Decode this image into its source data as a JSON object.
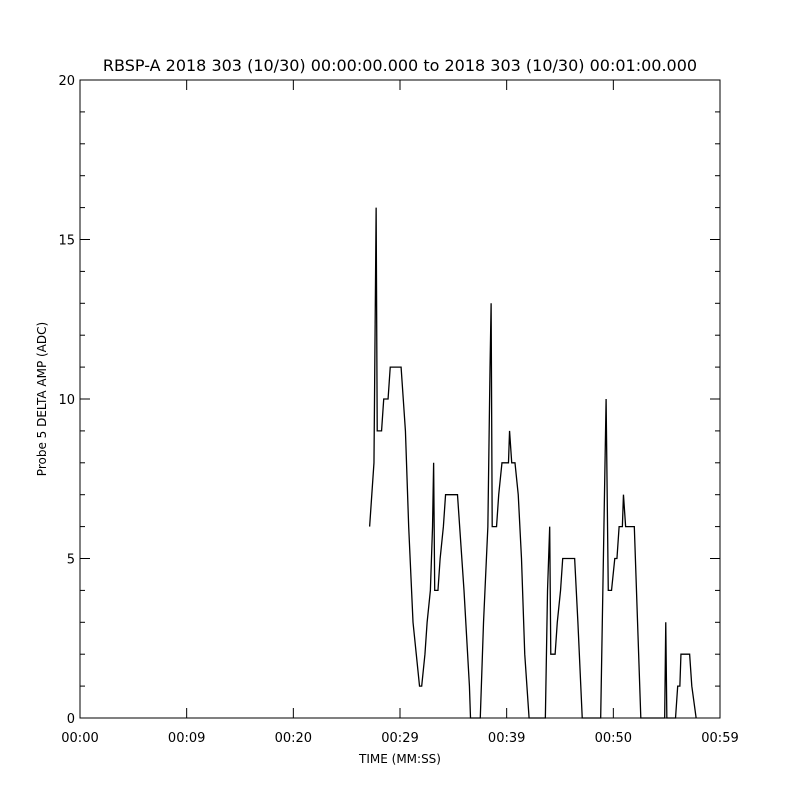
{
  "chart_data": {
    "type": "line",
    "title": "RBSP-A 2018 303 (10/30) 00:00:00.000 to 2018 303 (10/30) 00:01:00.000",
    "x_label": "TIME (MM:SS)",
    "y_label": "Probe 5 DELTA AMP (ADC)",
    "xlim": [
      0,
      59
    ],
    "xticks": [
      {
        "value": 0,
        "label": "00:00"
      },
      {
        "value": 9.833,
        "label": "00:09"
      },
      {
        "value": 19.667,
        "label": "00:20"
      },
      {
        "value": 29.5,
        "label": "00:29"
      },
      {
        "value": 39.333,
        "label": "00:39"
      },
      {
        "value": 49.167,
        "label": "00:50"
      },
      {
        "value": 59,
        "label": "00:59"
      }
    ],
    "ylim": [
      0,
      20
    ],
    "yticks": [
      0,
      5,
      10,
      15,
      20
    ],
    "color": "#000000",
    "x": [
      26.7,
      27.1,
      27.3,
      27.4,
      27.8,
      28.0,
      28.4,
      28.6,
      29.6,
      29.8,
      30.0,
      30.3,
      30.7,
      31.0,
      31.3,
      31.5,
      31.8,
      32.0,
      32.3,
      32.5,
      32.6,
      32.7,
      33.0,
      33.2,
      33.5,
      33.7,
      34.8,
      35.0,
      35.4,
      35.9,
      36.0,
      36.9,
      37.2,
      37.6,
      37.8,
      37.9,
      38.0,
      38.4,
      38.6,
      38.9,
      39.5,
      39.6,
      39.8,
      40.1,
      40.4,
      40.7,
      41.0,
      41.4,
      42.9,
      43.1,
      43.3,
      43.4,
      43.8,
      44.0,
      44.3,
      44.5,
      44.9,
      45.6,
      45.9,
      46.3,
      48.0,
      48.3,
      48.5,
      48.7,
      49.0,
      49.3,
      49.5,
      49.7,
      50.0,
      50.1,
      50.3,
      51.1,
      51.4,
      51.7,
      53.9,
      54.0,
      54.1,
      54.9,
      55.1,
      55.3,
      55.4,
      56.2,
      56.4,
      56.8
    ],
    "values": [
      6,
      8,
      16,
      9,
      9,
      10,
      10,
      11,
      11,
      10,
      9,
      6,
      3,
      2,
      1,
      1,
      2,
      3,
      4,
      6,
      8,
      4,
      4,
      5,
      6,
      7,
      7,
      6,
      4,
      1,
      0,
      0,
      3,
      6,
      11,
      13,
      6,
      6,
      7,
      8,
      8,
      9,
      8,
      8,
      7,
      5,
      2,
      0,
      0,
      4,
      6,
      2,
      2,
      3,
      4,
      5,
      5,
      5,
      3,
      0,
      0,
      6,
      10,
      4,
      4,
      5,
      5,
      6,
      6,
      7,
      6,
      6,
      3,
      0,
      0,
      3,
      0,
      0,
      1,
      1,
      2,
      2,
      1,
      0
    ]
  }
}
